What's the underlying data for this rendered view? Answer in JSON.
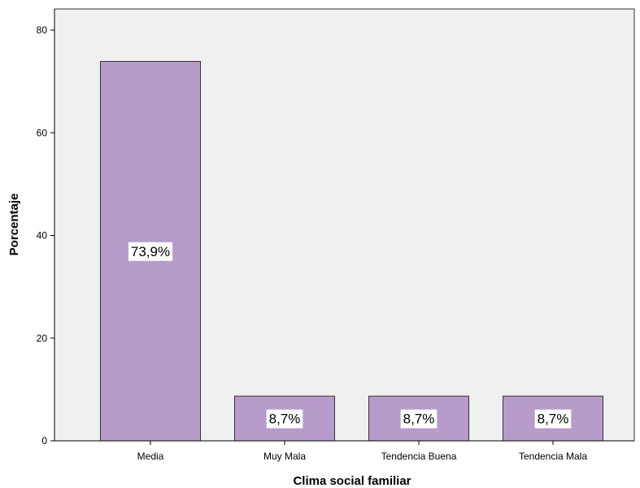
{
  "chart_data": {
    "type": "bar",
    "title": "",
    "xlabel": "Clima social familiar",
    "ylabel": "Porcentaje",
    "categories": [
      "Media",
      "Muy Mala",
      "Tendencia Buena",
      "Tendencia Mala"
    ],
    "values": [
      73.9,
      8.7,
      8.7,
      8.7
    ],
    "data_labels": [
      "73,9%",
      "8,7%",
      "8,7%",
      "8,7%"
    ],
    "ylim": [
      0,
      84
    ],
    "yticks": [
      0,
      20,
      40,
      60,
      80
    ],
    "ytick_labels": [
      "0",
      "20",
      "40",
      "60",
      "80"
    ],
    "grid": false,
    "legend": "none",
    "colors": {
      "bar_fill": "#b79bcb",
      "bar_stroke": "#333333",
      "plot_background": "#f0f0f0",
      "axis": "#000000",
      "label_box": "#ffffff"
    }
  }
}
